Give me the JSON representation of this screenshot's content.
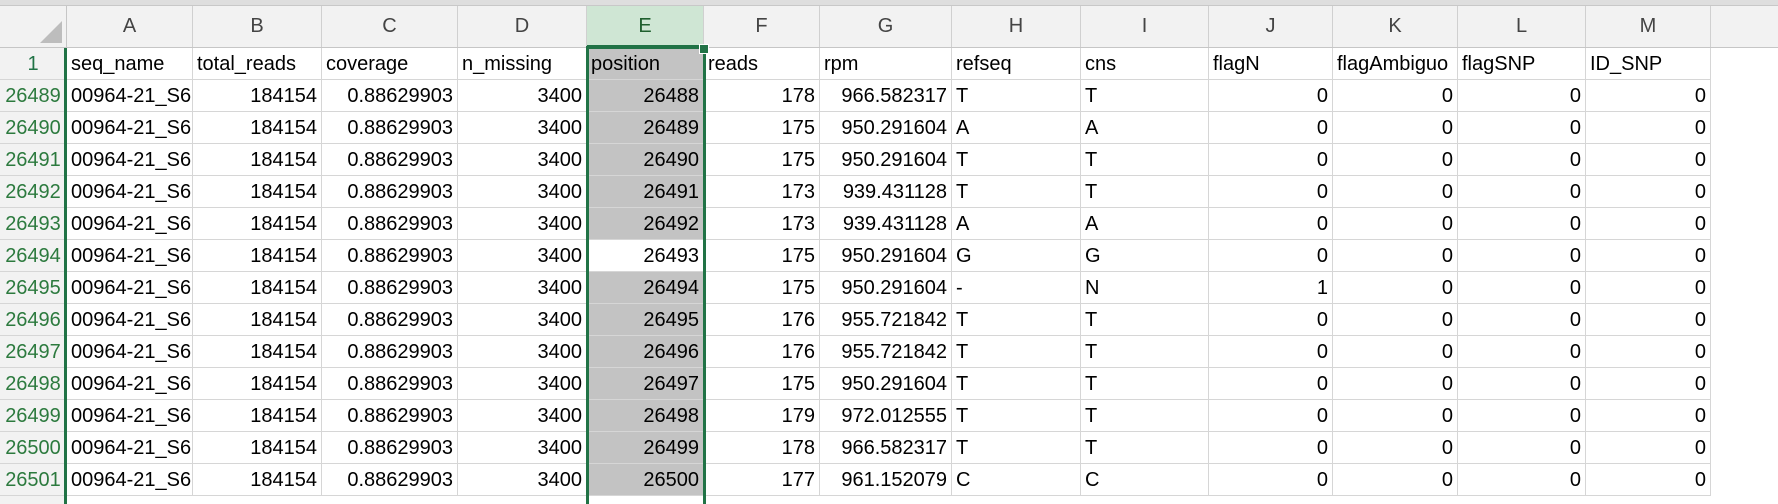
{
  "columns": [
    "A",
    "B",
    "C",
    "D",
    "E",
    "F",
    "G",
    "H",
    "I",
    "J",
    "K",
    "L",
    "M"
  ],
  "header_row_number": "1",
  "headers": [
    "seq_name",
    "total_reads",
    "coverage",
    "n_missing",
    "position",
    "reads",
    "rpm",
    "refseq",
    "cns",
    "flagN",
    "flagAmbiguo",
    "flagSNP",
    "ID_SNP"
  ],
  "rows": [
    {
      "rownum": "26489",
      "cells": [
        "00964-21_S6",
        "184154",
        "0.88629903",
        "3400",
        "26488",
        "178",
        "966.582317",
        "T",
        "T",
        "0",
        "0",
        "0",
        "0"
      ]
    },
    {
      "rownum": "26490",
      "cells": [
        "00964-21_S6",
        "184154",
        "0.88629903",
        "3400",
        "26489",
        "175",
        "950.291604",
        "A",
        "A",
        "0",
        "0",
        "0",
        "0"
      ]
    },
    {
      "rownum": "26491",
      "cells": [
        "00964-21_S6",
        "184154",
        "0.88629903",
        "3400",
        "26490",
        "175",
        "950.291604",
        "T",
        "T",
        "0",
        "0",
        "0",
        "0"
      ]
    },
    {
      "rownum": "26492",
      "cells": [
        "00964-21_S6",
        "184154",
        "0.88629903",
        "3400",
        "26491",
        "173",
        "939.431128",
        "T",
        "T",
        "0",
        "0",
        "0",
        "0"
      ]
    },
    {
      "rownum": "26493",
      "cells": [
        "00964-21_S6",
        "184154",
        "0.88629903",
        "3400",
        "26492",
        "173",
        "939.431128",
        "A",
        "A",
        "0",
        "0",
        "0",
        "0"
      ]
    },
    {
      "rownum": "26494",
      "cells": [
        "00964-21_S6",
        "184154",
        "0.88629903",
        "3400",
        "26493",
        "175",
        "950.291604",
        "G",
        "G",
        "0",
        "0",
        "0",
        "0"
      ]
    },
    {
      "rownum": "26495",
      "cells": [
        "00964-21_S6",
        "184154",
        "0.88629903",
        "3400",
        "26494",
        "175",
        "950.291604",
        "-",
        "N",
        "1",
        "0",
        "0",
        "0"
      ]
    },
    {
      "rownum": "26496",
      "cells": [
        "00964-21_S6",
        "184154",
        "0.88629903",
        "3400",
        "26495",
        "176",
        "955.721842",
        "T",
        "T",
        "0",
        "0",
        "0",
        "0"
      ]
    },
    {
      "rownum": "26497",
      "cells": [
        "00964-21_S6",
        "184154",
        "0.88629903",
        "3400",
        "26496",
        "176",
        "955.721842",
        "T",
        "T",
        "0",
        "0",
        "0",
        "0"
      ]
    },
    {
      "rownum": "26498",
      "cells": [
        "00964-21_S6",
        "184154",
        "0.88629903",
        "3400",
        "26497",
        "175",
        "950.291604",
        "T",
        "T",
        "0",
        "0",
        "0",
        "0"
      ]
    },
    {
      "rownum": "26499",
      "cells": [
        "00964-21_S6",
        "184154",
        "0.88629903",
        "3400",
        "26498",
        "179",
        "972.012555",
        "T",
        "T",
        "0",
        "0",
        "0",
        "0"
      ]
    },
    {
      "rownum": "26500",
      "cells": [
        "00964-21_S6",
        "184154",
        "0.88629903",
        "3400",
        "26499",
        "178",
        "966.582317",
        "T",
        "T",
        "0",
        "0",
        "0",
        "0"
      ]
    },
    {
      "rownum": "26501",
      "cells": [
        "00964-21_S6",
        "184154",
        "0.88629903",
        "3400",
        "26500",
        "177",
        "961.152079",
        "C",
        "C",
        "0",
        "0",
        "0",
        "0"
      ]
    }
  ],
  "selected_column": "E",
  "active_row": "26494",
  "colors": {
    "accent": "#217346",
    "selection": "#c3c3c3",
    "header_bg": "#f2f2f2"
  }
}
